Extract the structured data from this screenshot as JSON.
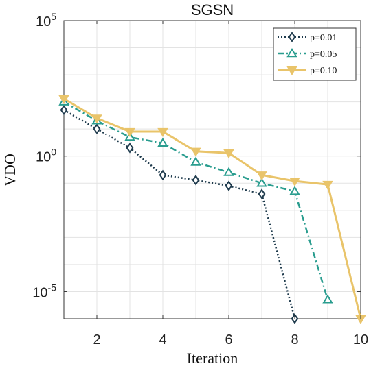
{
  "chart_data": {
    "type": "line",
    "title": "SGSN",
    "xlabel": "Iteration",
    "ylabel": "VDO",
    "y_scale": "log",
    "xlim": [
      1,
      10
    ],
    "ylim": [
      1e-06,
      100000
    ],
    "x_ticks": [
      2,
      4,
      6,
      8,
      10
    ],
    "y_ticks": [
      {
        "value": 1e-05,
        "base": "10",
        "exp": "-5"
      },
      {
        "value": 1,
        "base": "10",
        "exp": "0"
      },
      {
        "value": 100000,
        "base": "10",
        "exp": "5"
      }
    ],
    "grid": true,
    "legend_position": "top-right",
    "series": [
      {
        "name": "p=0.01",
        "color": "#1f3b4d",
        "line_style": "dotted",
        "marker": "diamond",
        "x": [
          1,
          2,
          3,
          4,
          5,
          6,
          7,
          8
        ],
        "y": [
          50,
          10,
          2,
          0.2,
          0.13,
          0.08,
          0.04,
          1e-06
        ]
      },
      {
        "name": "p=0.05",
        "color": "#2a9d8f",
        "line_style": "dashdot",
        "marker": "triangle-up",
        "x": [
          1,
          2,
          3,
          4,
          5,
          6,
          7,
          8,
          9
        ],
        "y": [
          100,
          20,
          5,
          3,
          0.6,
          0.25,
          0.1,
          0.05,
          5e-06
        ]
      },
      {
        "name": "p=0.10",
        "color": "#e9c46a",
        "line_style": "solid",
        "marker": "triangle-down",
        "x": [
          1,
          2,
          3,
          4,
          5,
          6,
          7,
          8,
          9,
          10
        ],
        "y": [
          130,
          25,
          8,
          8,
          1.5,
          1.3,
          0.2,
          0.12,
          0.09,
          1e-06
        ]
      }
    ]
  }
}
